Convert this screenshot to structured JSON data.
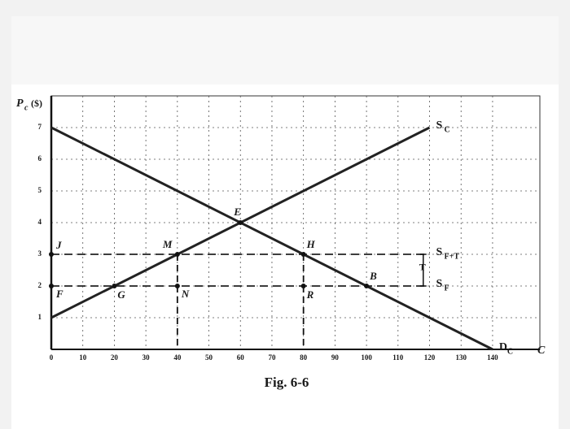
{
  "chart_data": {
    "type": "line",
    "caption": "Fig. 6-6",
    "y_label": {
      "text": "P",
      "subscript": "c",
      "unit": "($)"
    },
    "x_label": "C",
    "xlim": [
      0,
      155
    ],
    "ylim": [
      0,
      8
    ],
    "xticks": [
      0,
      10,
      20,
      30,
      40,
      50,
      60,
      70,
      80,
      90,
      100,
      110,
      120,
      130,
      140
    ],
    "yticks": [
      1,
      2,
      3,
      4,
      5,
      6,
      7
    ],
    "grid": true,
    "series": [
      {
        "name": "D",
        "subscript": "C",
        "color": "#222222",
        "dashed": false,
        "x": [
          0,
          140
        ],
        "values": [
          7,
          0
        ]
      },
      {
        "name": "S",
        "subscript": "C",
        "color": "#222222",
        "dashed": false,
        "x": [
          0,
          120
        ],
        "values": [
          1,
          7
        ]
      },
      {
        "name": "S",
        "subscript": "F",
        "color": "#222222",
        "dashed": true,
        "x": [
          0,
          120
        ],
        "values": [
          2,
          2
        ]
      },
      {
        "name": "S",
        "subscript": "F+T",
        "color": "#222222",
        "dashed": true,
        "x": [
          0,
          120
        ],
        "values": [
          3,
          3
        ]
      }
    ],
    "guides": [
      {
        "x": 40,
        "y": 3
      },
      {
        "x": 80,
        "y": 3
      }
    ],
    "points": [
      {
        "label": "J",
        "x": 0,
        "y": 3
      },
      {
        "label": "F",
        "x": 0,
        "y": 2
      },
      {
        "label": "G",
        "x": 20,
        "y": 2
      },
      {
        "label": "M",
        "x": 40,
        "y": 3
      },
      {
        "label": "N",
        "x": 40,
        "y": 2
      },
      {
        "label": "E",
        "x": 60,
        "y": 4
      },
      {
        "label": "H",
        "x": 80,
        "y": 3
      },
      {
        "label": "R",
        "x": 80,
        "y": 2
      },
      {
        "label": "B",
        "x": 100,
        "y": 2
      }
    ],
    "tax": {
      "label": "T",
      "x": 118,
      "y_from": 2,
      "y_to": 3
    }
  }
}
